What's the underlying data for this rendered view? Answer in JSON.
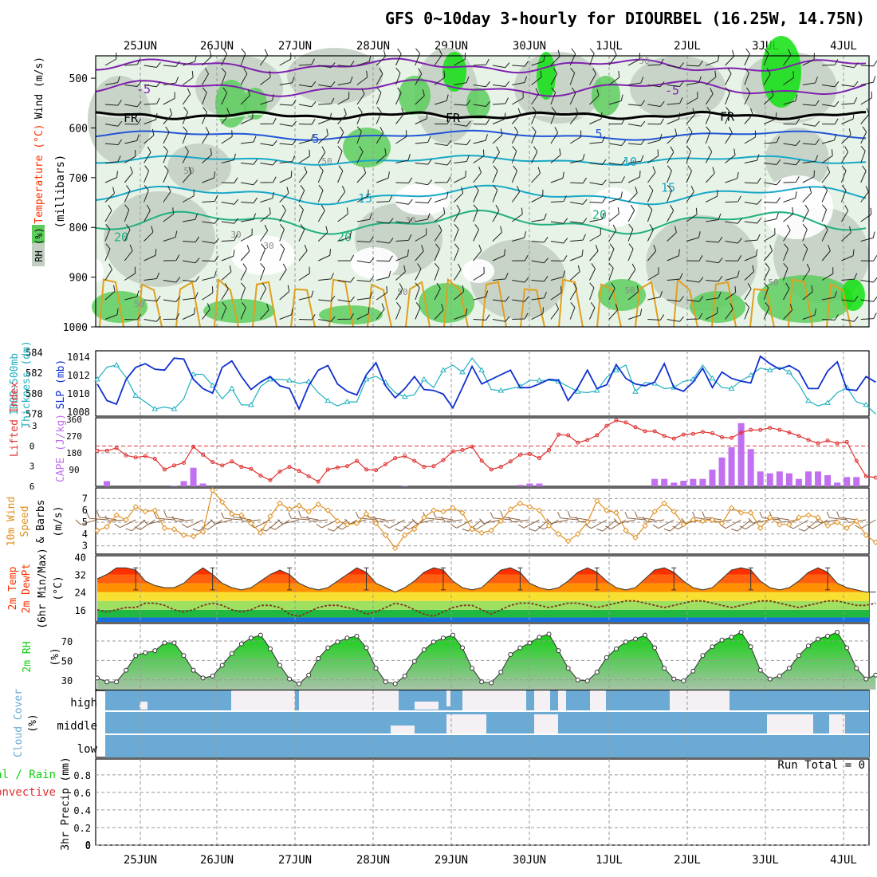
{
  "title": "GFS 0~10day 3-hourly for DIOURBEL (16.25W, 14.75N)",
  "dates": [
    "25JUN",
    "26JUN",
    "27JUN",
    "28JUN",
    "29JUN",
    "30JUN",
    "1JUL",
    "2JUL",
    "3JUL",
    "4JUL"
  ],
  "panel_labels": {
    "upper": [
      "RH (%)",
      "Temperature (°C)",
      "Wind (m/s)",
      "(millibars)"
    ],
    "slp": [
      "1000-500mb",
      "Thickness (dm)",
      "SLP (mb)"
    ],
    "cape": [
      "Lifted Index",
      "CAPE (J/kg)"
    ],
    "wind10": [
      "10m Wind",
      "Speed",
      "& Barbs",
      "(m/s)"
    ],
    "temp2m": [
      "2m Temp",
      "2m DewPt",
      "(6hr Min/Max)",
      "(°C)"
    ],
    "rh2m": [
      "2m RH",
      "(%)"
    ],
    "cloud": [
      "Cloud Cover",
      "(%)"
    ],
    "cloud_levels": [
      "high",
      "middle",
      "low"
    ],
    "precip": [
      "Total / Rain",
      "Convective",
      "3hr Precip (mm)"
    ],
    "run_total": "Run Total = 0"
  },
  "colors": {
    "frame": "#000000",
    "grid": "#999999",
    "upper_green_light": "#e6f3e6",
    "upper_gray": "#c2cec2",
    "upper_green": "#5ccc5c",
    "upper_bright": "#10e010",
    "iso_purple": "#8020b0",
    "iso_blue": "#2255d8",
    "iso_cyan": "#18a8c8",
    "iso_teal": "#10c0a0",
    "iso_green": "#20b080",
    "iso_orange": "#e0a020",
    "slp": "#1030d0",
    "thickness": "#20b0c0",
    "lifted_index": "#e03030",
    "cape_bars": "#c070f0",
    "wind_speed": "#e09020",
    "temp_dark": "#c01000",
    "temp_red": "#ff3000",
    "temp_orange": "#ff9000",
    "temp_yellow": "#f8e030",
    "temp_lgreen": "#a0e060",
    "temp_green": "#20b840",
    "temp_blue": "#1870e0",
    "rh_green": "#10d010",
    "rh_gray": "#a8c4a8",
    "cloud_blue": "#6aaad4",
    "cloud_white": "#f4f0f4"
  },
  "chart_data": [
    {
      "type": "heatmap",
      "name": "Upper-air RH / Temperature / Wind",
      "yaxis": {
        "label": "(millibars)",
        "ticks": [
          500,
          600,
          700,
          800,
          900,
          1000
        ]
      },
      "isotherm_labels": [
        "-5",
        "FR",
        "5",
        "10",
        "15",
        "20"
      ],
      "rh_labels": [
        "30",
        "50"
      ]
    },
    {
      "type": "line",
      "name": "SLP and 1000-500mb thickness",
      "slp_axis": {
        "label": "SLP (mb)",
        "ticks": [
          1008,
          1010,
          1012,
          1014
        ]
      },
      "thickness_axis": {
        "label": "1000-500mb Thickness (dm)",
        "ticks": [
          578,
          580,
          582,
          584
        ]
      },
      "slp": [
        1011,
        1009.2,
        1008.8,
        1011.5,
        1012.8,
        1013.2,
        1012.6,
        1012.5,
        1013.8,
        1013.7,
        1011.5,
        1010.5,
        1010,
        1012.8,
        1013.5,
        1011.8,
        1010.4,
        1011.2,
        1011.8,
        1010.8,
        1010.5,
        1008.3,
        1010.8,
        1012.5,
        1013,
        1011,
        1010.2,
        1009.8,
        1012,
        1013.3,
        1010.8,
        1009.5,
        1010.5,
        1011.8,
        1010.4,
        1010.3,
        1009.9,
        1008.4,
        1010.6,
        1012.9,
        1011,
        1011.5,
        1012,
        1012.5,
        1010.6,
        1010.6,
        1011,
        1011.5,
        1011.4,
        1009.2,
        1010.6,
        1012.5,
        1010.5,
        1010.9,
        1013.1,
        1011.6,
        1011,
        1010.8,
        1011.2,
        1013.2,
        1010.6,
        1010.2,
        1011.2,
        1012.7,
        1010.6,
        1012.3,
        1011.6,
        1011.3,
        1011.1,
        1014.0,
        1013.2,
        1012.6,
        1013,
        1012.4,
        1010.5,
        1010.5,
        1012.4,
        1013.4,
        1010.4,
        1010.3,
        1011.8,
        1011.2
      ],
      "thickness": [
        581.4,
        582.6,
        582.8,
        581.6,
        579.8,
        579.2,
        578.5,
        578.7,
        578.5,
        579.5,
        581.9,
        581.9,
        580.8,
        579.5,
        580.5,
        578.9,
        578.9,
        580.7,
        581.4,
        581.4,
        581.3,
        581,
        581.2,
        580.1,
        579.3,
        578.8,
        579.2,
        579.2,
        581.4,
        581.7,
        581.1,
        580.1,
        579.7,
        579.9,
        581.4,
        580.6,
        582.3,
        582.8,
        582.1,
        583.5,
        582.3,
        580.4,
        580.3,
        580.5,
        580.7,
        581.3,
        581.3,
        581.3,
        581.2,
        580.7,
        580.2,
        580.1,
        580.3,
        581.6,
        582.3,
        582.8,
        580.2,
        581.1,
        581,
        580.5,
        580.6,
        581.2,
        581.4,
        582.8,
        581.5,
        580.6,
        580.5,
        581.3,
        581.8,
        582.5,
        582.3,
        582.6,
        582.1,
        580.9,
        579.3,
        578.8,
        579.1,
        580.1,
        580.6,
        579.2,
        578.9,
        578.0
      ]
    },
    {
      "type": "bar",
      "name": "Lifted Index and CAPE",
      "li_axis": {
        "label": "Lifted Index",
        "ticks": [
          6,
          3,
          0,
          -3
        ]
      },
      "cape_axis": {
        "label": "CAPE (J/kg)",
        "ticks": [
          90,
          180,
          270,
          360
        ]
      },
      "lifted_index": [
        0.7,
        0.7,
        0.3,
        1.4,
        1.7,
        1.5,
        1.9,
        3.5,
        2.9,
        2.5,
        0.1,
        1.3,
        2.4,
        2.9,
        2.3,
        3.1,
        3.4,
        4.4,
        5.1,
        3.8,
        3.1,
        3.7,
        4.5,
        5.3,
        3.5,
        3.2,
        3.0,
        2.2,
        3.5,
        3.6,
        2.7,
        1.8,
        1.5,
        2.2,
        3.1,
        3.0,
        2.1,
        0.8,
        0.6,
        0.1,
        2.2,
        3.5,
        3.1,
        2.3,
        1.3,
        1.2,
        1.8,
        0.6,
        -1.7,
        -1.6,
        -0.5,
        -0.9,
        -1.6,
        -3.0,
        -3.8,
        -3.5,
        -2.8,
        -2.2,
        -2.2,
        -1.5,
        -1.1,
        -1.7,
        -1.8,
        -2.1,
        -1.9,
        -1.3,
        -1.2,
        -2.0,
        -2.4,
        -2.4,
        -2.7,
        -2.4,
        -2.0,
        -1.5,
        -0.9,
        -0.4,
        -0.8,
        -0.4,
        -0.6,
        2.2,
        4.5,
        4.7
      ],
      "cape": [
        0,
        28,
        0,
        0,
        0,
        0,
        0,
        0,
        3,
        28,
        100,
        15,
        0,
        0,
        0,
        0,
        0,
        0,
        0,
        0,
        0,
        0,
        0,
        0,
        0,
        0,
        0,
        0,
        0,
        0,
        0,
        0,
        3,
        0,
        0,
        0,
        0,
        0,
        0,
        0,
        0,
        0,
        0,
        0,
        8,
        15,
        15,
        0,
        0,
        0,
        0,
        0,
        0,
        0,
        0,
        0,
        0,
        0,
        40,
        40,
        20,
        30,
        40,
        40,
        90,
        155,
        210,
        340,
        200,
        80,
        70,
        80,
        70,
        40,
        80,
        80,
        60,
        20,
        50,
        50,
        0,
        0
      ],
      "cape_hours_offset": 0
    },
    {
      "type": "line",
      "name": "10m wind speed",
      "yaxis": {
        "label": "(m/s)",
        "ticks": [
          3,
          4,
          5,
          6,
          7
        ]
      },
      "speed": [
        4.3,
        4.6,
        5.6,
        5.2,
        6.3,
        5.9,
        6.0,
        4.5,
        4.4,
        3.9,
        3.8,
        4.2,
        7.7,
        6.7,
        5.7,
        5.6,
        4.9,
        4.1,
        5.5,
        6.6,
        6.1,
        6.4,
        5.9,
        6.5,
        6.0,
        5.1,
        4.8,
        4.9,
        5.7,
        4.9,
        3.9,
        2.8,
        3.9,
        4.4,
        5.4,
        6.0,
        5.9,
        6.2,
        5.8,
        4.4,
        4.1,
        4.3,
        5.1,
        6.1,
        6.6,
        6.3,
        6.0,
        4.7,
        4.0,
        3.4,
        4.0,
        5.0,
        6.8,
        6.0,
        5.8,
        4.3,
        3.7,
        4.7,
        5.9,
        6.6,
        5.9,
        4.8,
        5.2,
        5.1,
        5.2,
        4.9,
        6.2,
        5.8,
        5.8,
        4.5,
        5.4,
        4.8,
        4.8,
        5.4,
        5.6,
        5.4,
        4.7,
        5.0,
        4.5,
        5.1,
        3.9,
        3.3
      ]
    },
    {
      "type": "area",
      "name": "2m temperature and dew point",
      "yaxis": {
        "label": "(°C)",
        "ticks": [
          16,
          24,
          32,
          40
        ]
      },
      "temp": [
        30,
        32,
        35,
        35,
        34,
        29,
        27,
        26,
        26,
        28,
        32,
        35,
        32,
        28,
        26,
        25,
        26,
        29,
        32,
        34,
        32,
        28,
        26,
        25,
        26,
        29,
        32,
        35,
        33,
        28,
        26,
        24,
        26,
        29,
        33,
        35,
        34,
        29,
        26,
        25,
        26,
        30,
        34,
        35,
        33,
        28,
        26,
        25,
        26,
        29,
        33,
        35,
        33,
        29,
        26,
        25,
        26,
        30,
        34,
        35,
        33,
        29,
        26,
        25,
        26,
        30,
        34,
        35,
        34,
        29,
        26,
        25,
        26,
        29,
        33,
        35,
        33,
        28,
        26,
        25,
        24,
        24
      ],
      "dewpt": [
        16,
        15,
        16,
        17,
        17,
        19,
        19,
        18,
        16,
        15,
        16,
        18,
        19,
        18,
        16,
        15,
        16,
        18,
        18,
        17,
        14,
        13,
        15,
        17,
        18,
        18,
        17,
        16,
        14,
        15,
        17,
        19,
        18,
        16,
        14,
        13,
        15,
        17,
        18,
        18,
        16,
        14,
        16,
        18,
        19,
        19,
        18,
        17,
        18,
        19,
        19,
        18,
        17,
        18,
        19,
        20,
        20,
        19,
        18,
        17,
        18,
        19,
        20,
        20,
        19,
        18,
        17,
        18,
        19,
        20,
        20,
        19,
        18,
        17,
        18,
        19,
        20,
        20,
        19,
        18,
        18,
        19
      ]
    },
    {
      "type": "area",
      "name": "2m relative humidity",
      "yaxis": {
        "label": "(%)",
        "ticks": [
          30,
          50,
          70
        ]
      },
      "rh": [
        32,
        28,
        28,
        40,
        55,
        58,
        60,
        68,
        68,
        55,
        40,
        32,
        34,
        45,
        57,
        67,
        73,
        76,
        62,
        45,
        31,
        26,
        35,
        52,
        63,
        69,
        73,
        75,
        63,
        42,
        28,
        26,
        34,
        49,
        61,
        69,
        73,
        76,
        63,
        42,
        28,
        27,
        38,
        56,
        63,
        68,
        74,
        77,
        60,
        42,
        30,
        29,
        38,
        53,
        62,
        69,
        72,
        76,
        63,
        42,
        31,
        29,
        39,
        55,
        64,
        71,
        74,
        79,
        64,
        40,
        31,
        34,
        42,
        55,
        65,
        72,
        75,
        79,
        63,
        42,
        31,
        35
      ]
    },
    {
      "type": "heatmap",
      "name": "Cloud cover",
      "levels": [
        "high",
        "middle",
        "low"
      ]
    },
    {
      "type": "bar",
      "name": "3hr precipitation",
      "yaxis": {
        "label": "3hr Precip (mm)",
        "ticks": [
          0,
          0.2,
          0.4,
          0.6,
          0.8
        ]
      },
      "values": []
    }
  ]
}
